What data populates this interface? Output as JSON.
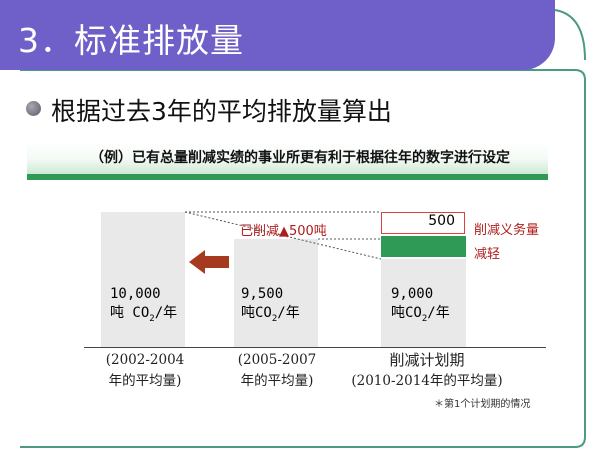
{
  "title": "3．标准排放量",
  "subtitle": "根据过去3年的平均排放量算出",
  "band_text": "（例）已有总量削减实绩的事业所更有利于根据往年的数字进行设定",
  "bars": [
    {
      "line1": "10,000",
      "unit_prefix": "吨 CO",
      "unit_sub": "2",
      "unit_suffix": "/年",
      "caption1": "(2002-2004",
      "caption2": "年的平均量)"
    },
    {
      "line1": "9,500",
      "unit_prefix": "吨CO",
      "unit_sub": "2",
      "unit_suffix": "/年",
      "caption1": "(2005-2007",
      "caption2": "年的平均量)"
    },
    {
      "line1": "9,000",
      "unit_prefix": "吨CO",
      "unit_sub": "2",
      "unit_suffix": "/年",
      "caption1": "削减计划期",
      "caption2": "(2010-2014年的平均量)"
    }
  ],
  "reduced_label": "已削减▲500吨",
  "obligation_value": "500",
  "obligation_label": "削减义务量",
  "relief_label": "减轻",
  "note": "＊第1个计划期的情况",
  "colors": {
    "title_band": "#6f5fc8",
    "green": "#2e9a55",
    "arrow": "#a63a1e",
    "red_text": "#b01c1c",
    "frame": "#4c9a86"
  }
}
